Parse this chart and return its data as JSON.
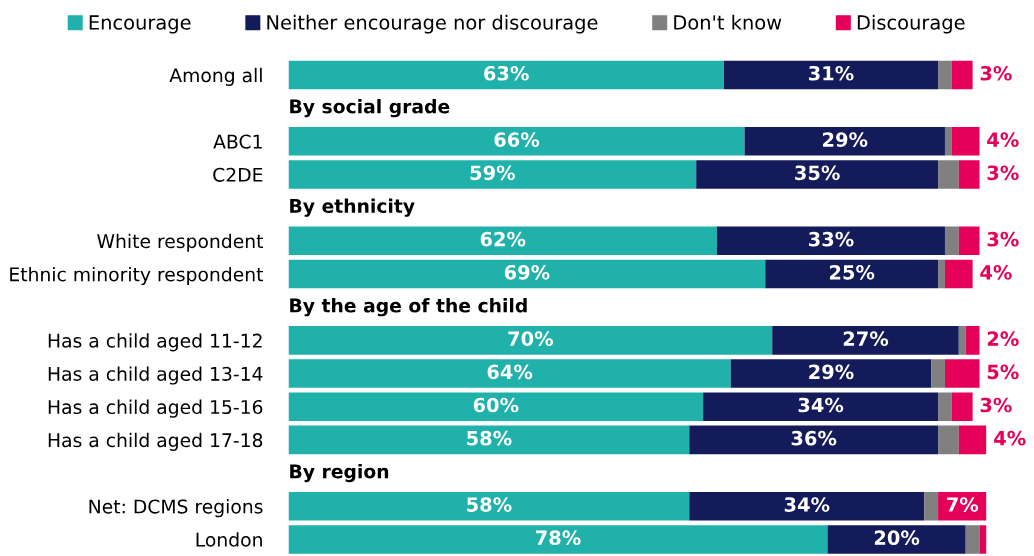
{
  "chart_data": {
    "type": "bar",
    "orientation": "horizontal",
    "stacked": true,
    "legend": "top",
    "categories": [
      "Among all",
      "By social grade",
      "ABC1",
      "C2DE",
      "By ethnicity",
      "White respondent",
      "Ethnic minority respondent",
      "By the age of the child",
      "Has a child aged 11-12",
      "Has a child aged 13-14",
      "Has a child aged 15-16",
      "Has a child aged 17-18",
      "By region",
      "Net: DCMS regions",
      "London"
    ],
    "series": [
      {
        "name": "Encourage",
        "color": "#20b2aa",
        "values": [
          63,
          null,
          66,
          59,
          null,
          62,
          69,
          null,
          70,
          64,
          60,
          58,
          null,
          58,
          78
        ],
        "value_labels": [
          "63%",
          null,
          "66%",
          "59%",
          null,
          "62%",
          "69%",
          null,
          "70%",
          "64%",
          "60%",
          "58%",
          null,
          "58%",
          "78%"
        ]
      },
      {
        "name": "Neither encourage nor discourage",
        "color": "#141b5a",
        "values": [
          31,
          null,
          29,
          35,
          null,
          33,
          25,
          null,
          27,
          29,
          34,
          36,
          null,
          34,
          20
        ],
        "value_labels": [
          "31%",
          null,
          "29%",
          "35%",
          null,
          "33%",
          "25%",
          null,
          "27%",
          "29%",
          "34%",
          "36%",
          null,
          "34%",
          "20%"
        ]
      },
      {
        "name": "Don't know",
        "color": "#808080",
        "values": [
          2,
          null,
          1,
          3,
          null,
          2,
          1,
          null,
          1,
          2,
          2,
          3,
          null,
          2,
          2
        ],
        "value_labels": [
          null,
          null,
          null,
          null,
          null,
          null,
          null,
          null,
          null,
          null,
          null,
          null,
          null,
          null,
          null
        ]
      },
      {
        "name": "Discourage",
        "color": "#e5005a",
        "values": [
          3,
          null,
          4,
          3,
          null,
          3,
          4,
          null,
          2,
          5,
          3,
          4,
          null,
          7,
          1
        ],
        "value_labels": [
          "3%",
          null,
          "4%",
          "3%",
          null,
          "3%",
          "4%",
          null,
          "2%",
          "5%",
          "3%",
          "4%",
          null,
          "7%",
          null
        ]
      }
    ]
  }
}
